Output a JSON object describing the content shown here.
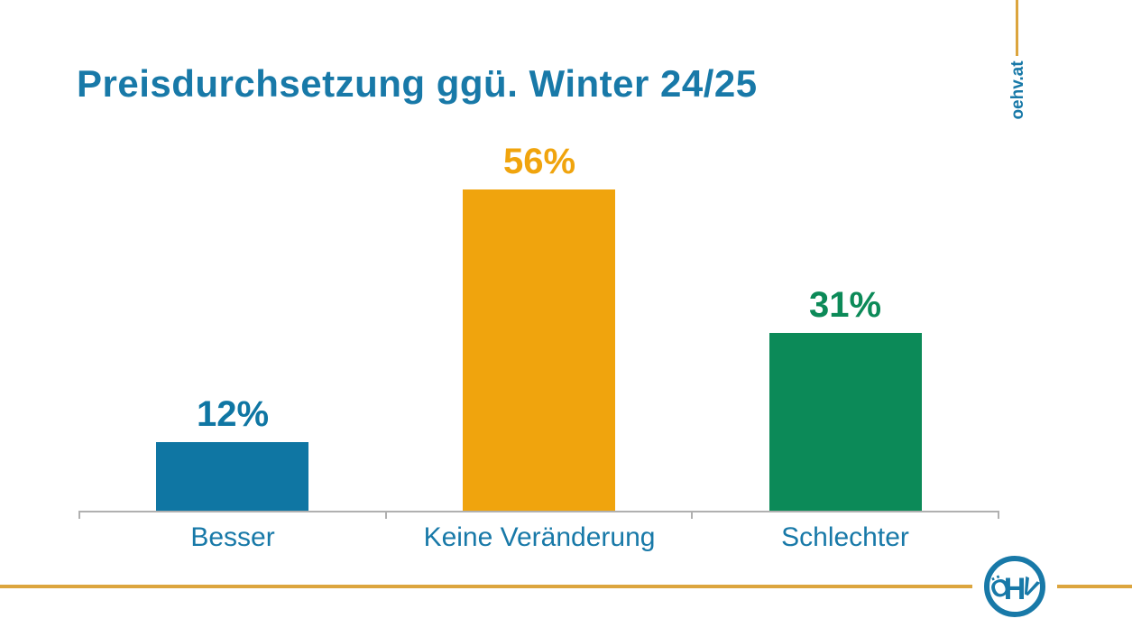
{
  "page": {
    "background": "#FFFFFF"
  },
  "title": {
    "text": "Preisdurchsetzung ggü. Winter 24/25",
    "color": "#1879A8"
  },
  "branding": {
    "website_label": "oehv.at",
    "logo_letters": [
      "Ö",
      "H",
      "V"
    ],
    "accent_line_color": "#DCA53E",
    "brand_teal": "#1879A8"
  },
  "chart_data": {
    "type": "bar",
    "title": "Preisdurchsetzung ggü. Winter 24/25",
    "categories": [
      "Besser",
      "Keine Veränderung",
      "Schlechter"
    ],
    "values": [
      12,
      56,
      31
    ],
    "value_labels": [
      "12%",
      "56%",
      "31%"
    ],
    "bar_colors": [
      "#0F76A3",
      "#F0A40D",
      "#0C8A58"
    ],
    "category_label_color": "#1879A8",
    "axis_color": "#B0B0B0",
    "ylim": [
      0,
      60
    ],
    "grid": false,
    "legend": false,
    "value_label_position": "above"
  }
}
